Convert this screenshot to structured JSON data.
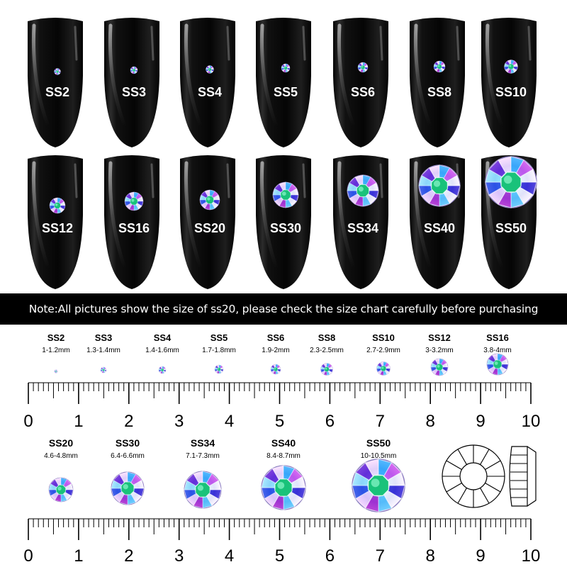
{
  "nails_row1": [
    "SS2",
    "SS3",
    "SS4",
    "SS5",
    "SS6",
    "SS8",
    "SS10"
  ],
  "nails_row2": [
    "SS12",
    "SS16",
    "SS20",
    "SS30",
    "SS34",
    "SS40",
    "SS50"
  ],
  "note": "Note:All pictures show the size of ss20, please check the size chart carefully before purchasing",
  "size_chart": {
    "row1": [
      {
        "name": "SS2",
        "range": "1-1.2mm"
      },
      {
        "name": "SS3",
        "range": "1.3-1.4mm"
      },
      {
        "name": "SS4",
        "range": "1.4-1.6mm"
      },
      {
        "name": "SS5",
        "range": "1.7-1.8mm"
      },
      {
        "name": "SS6",
        "range": "1.9-2mm"
      },
      {
        "name": "SS8",
        "range": "2.3-2.5mm"
      },
      {
        "name": "SS10",
        "range": "2.7-2.9mm"
      },
      {
        "name": "SS12",
        "range": "3-3.2mm"
      },
      {
        "name": "SS16",
        "range": "3.8-4mm"
      }
    ],
    "row2": [
      {
        "name": "SS20",
        "range": "4.6-4.8mm"
      },
      {
        "name": "SS30",
        "range": "6.4-6.6mm"
      },
      {
        "name": "SS34",
        "range": "7.1-7.3mm"
      },
      {
        "name": "SS40",
        "range": "8.4-8.7mm"
      },
      {
        "name": "SS50",
        "range": "10-10.5mm"
      }
    ],
    "ruler_labels": [
      "0",
      "1",
      "2",
      "3",
      "4",
      "5",
      "6",
      "7",
      "8",
      "9",
      "10"
    ]
  },
  "colors": {
    "nail": "#0d0d0d",
    "band": "#000000",
    "text_light": "#ffffff",
    "text_dark": "#000000"
  },
  "icons": [
    "rhinestone-gem-icon",
    "flatback-top-view-icon",
    "flatback-side-view-icon"
  ]
}
